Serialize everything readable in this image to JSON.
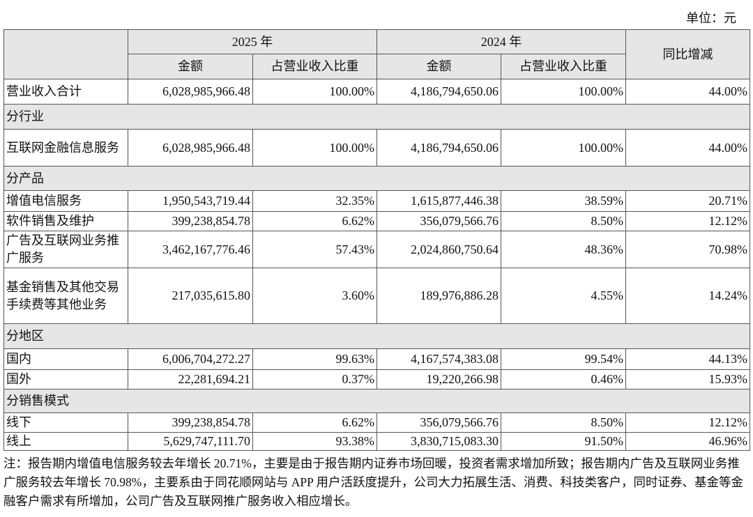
{
  "unit": "单位：元",
  "table": {
    "header": {
      "year1": "2025 年",
      "year2": "2024 年",
      "change": "同比增减",
      "sub": [
        "金额",
        "占营业收入比重",
        "金额",
        "占营业收入比重"
      ]
    },
    "rows": [
      [
        "营业收入合计",
        "6,028,985,966.48",
        "100.00%",
        "4,186,794,650.06",
        "100.00%",
        "44.00%"
      ],
      [
        "分行业"
      ],
      [
        "互联网金融信息服务",
        "6,028,985,966.48",
        "100.00%",
        "4,186,794,650.06",
        "100.00%",
        "44.00%"
      ],
      [
        "分产品"
      ],
      [
        "增值电信服务",
        "1,950,543,719.44",
        "32.35%",
        "1,615,877,446.38",
        "38.59%",
        "20.71%"
      ],
      [
        "软件销售及维护",
        "399,238,854.78",
        "6.62%",
        "356,079,566.76",
        "8.50%",
        "12.12%"
      ],
      [
        "广告及互联网业务推广服务",
        "3,462,167,776.46",
        "57.43%",
        "2,024,860,750.64",
        "48.36%",
        "70.98%"
      ],
      [
        "基金销售及其他交易手续费等其他业务",
        "217,035,615.80",
        "3.60%",
        "189,976,886.28",
        "4.55%",
        "14.24%"
      ],
      [
        "分地区"
      ],
      [
        "国内",
        "6,006,704,272.27",
        "99.63%",
        "4,167,574,383.08",
        "99.54%",
        "44.13%"
      ],
      [
        "国外",
        "22,281,694.21",
        "0.37%",
        "19,220,266.98",
        "0.46%",
        "15.93%"
      ],
      [
        "分销售模式"
      ],
      [
        "线下",
        "399,238,854.78",
        "6.62%",
        "356,079,566.76",
        "8.50%",
        "12.12%"
      ],
      [
        "线上",
        "5,629,747,111.70",
        "93.38%",
        "3,830,715,083.30",
        "91.50%",
        "46.96%"
      ]
    ]
  },
  "note": "注：报告期内增值电信服务较去年增长 20.71%，主要是由于报告期内证券市场回暖，投资者需求增加所致；报告期内广告及互联网业务推广服务较去年增长 70.98%，主要系由于同花顺网站与 APP 用户活跃度提升，公司大力拓展生活、消费、科技类客户，同时证券、基金等金融客户需求有所增加，公司广告及互联网推广服务收入相应增长。"
}
